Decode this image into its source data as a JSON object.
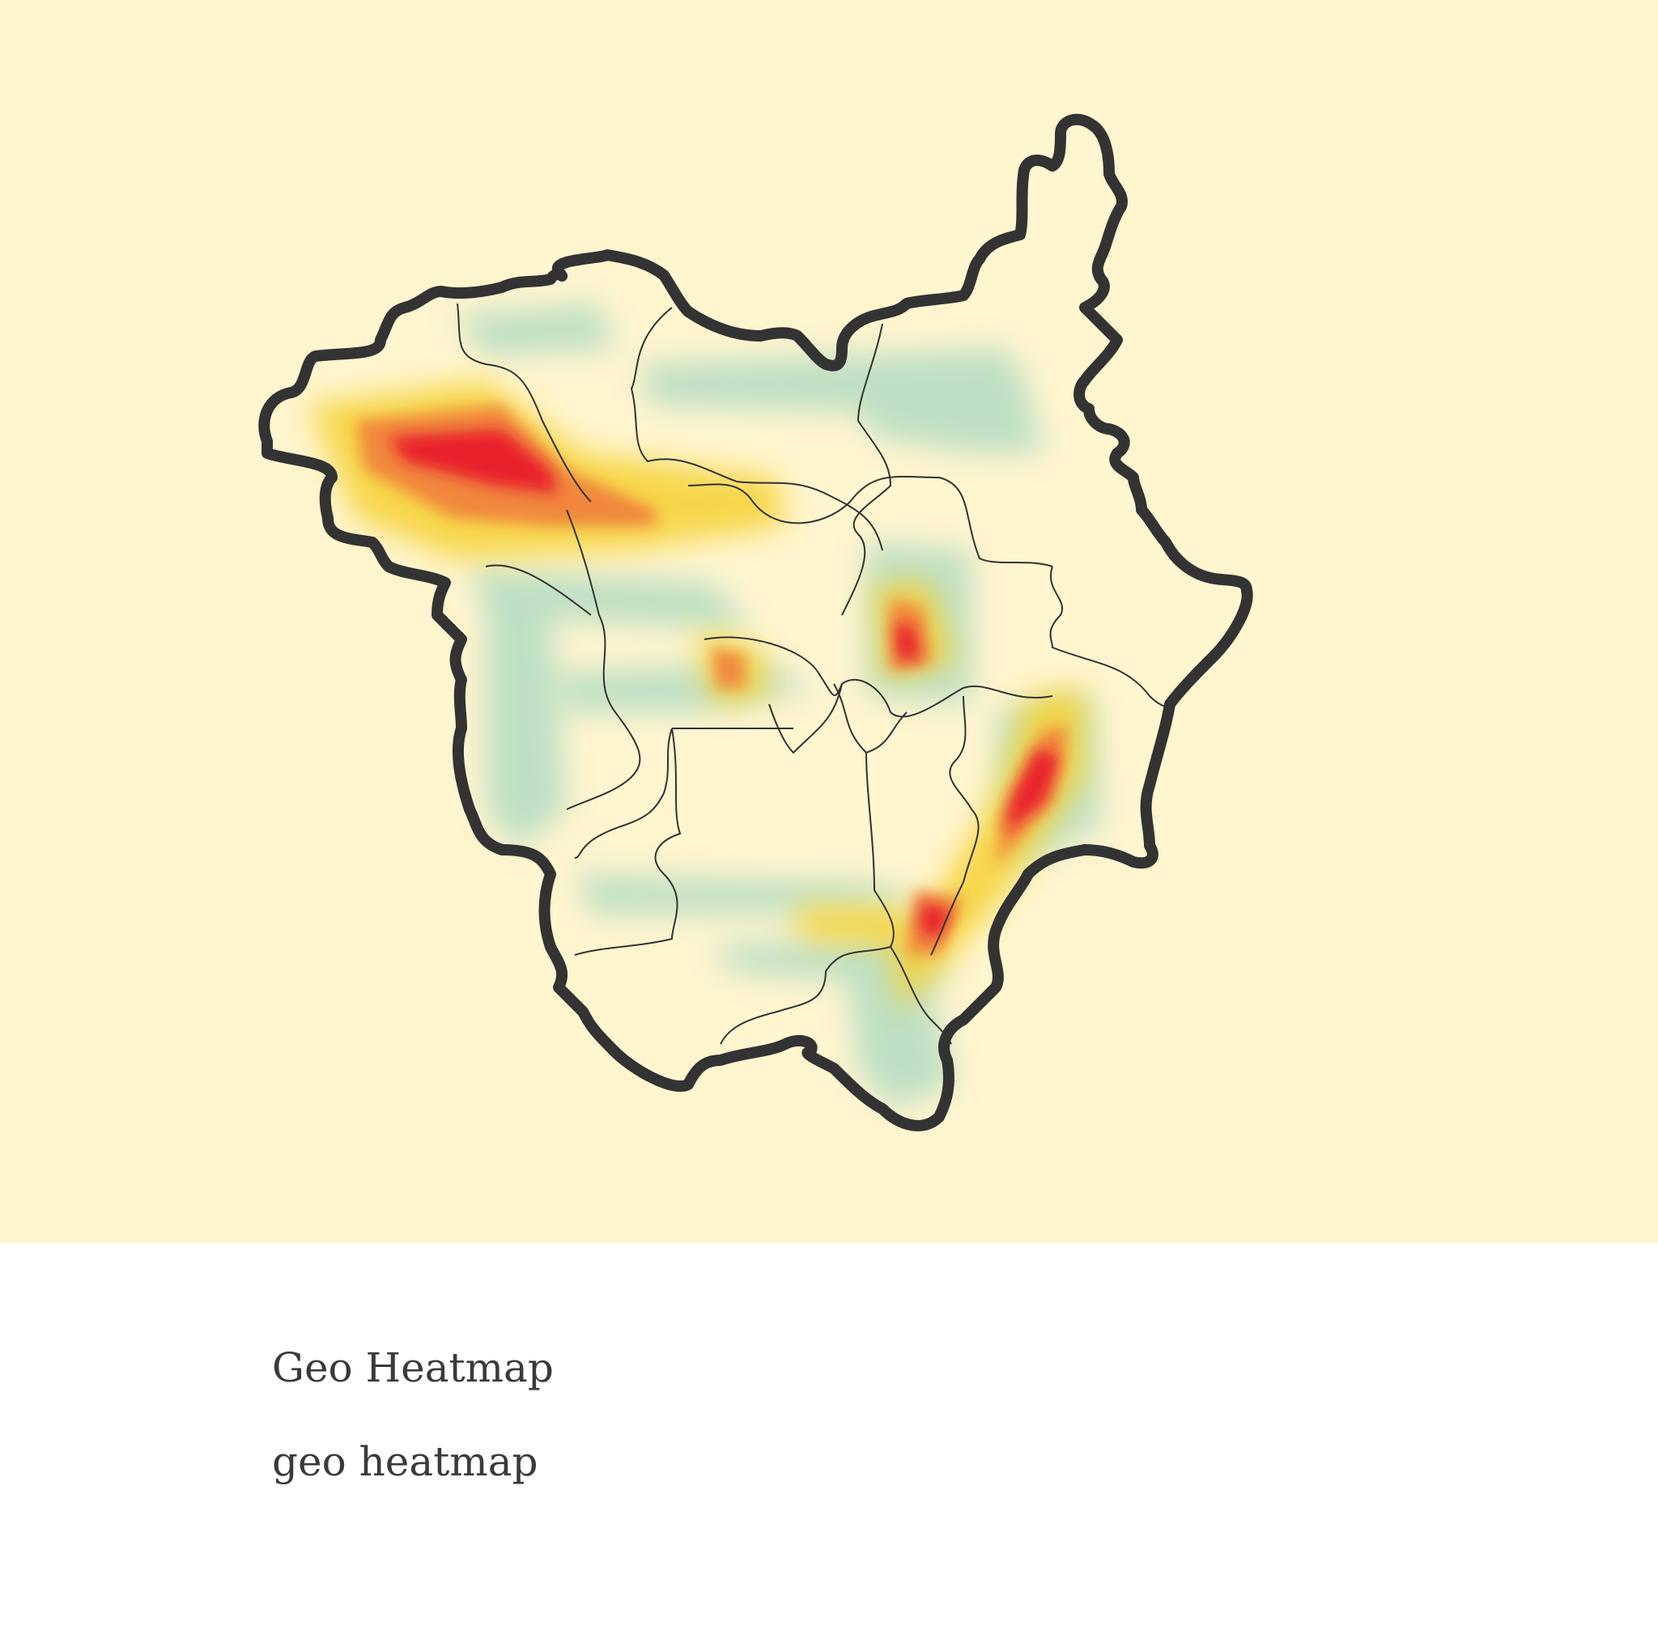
{
  "caption": {
    "title": "Geo Heatmap",
    "subtitle": "geo heatmap"
  },
  "colors": {
    "background": "#fff5cf",
    "outline": "#333333",
    "heat_low": "#a8d8c0",
    "heat_mid": "#f5d33a",
    "heat_high": "#f07a3a",
    "heat_peak": "#e8182a"
  },
  "heat_levels": [
    "low",
    "mid",
    "high",
    "peak"
  ]
}
